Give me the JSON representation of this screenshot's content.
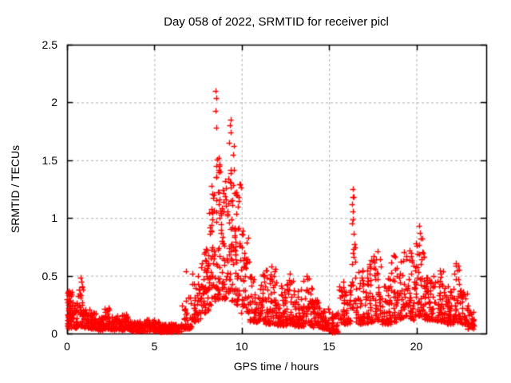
{
  "title": "Day 058 of 2022, SRMTID for receiver picl",
  "x_axis": {
    "label": "GPS time / hours",
    "tick_labels": [
      "0",
      "5",
      "10",
      "15",
      "20"
    ]
  },
  "y_axis": {
    "label": "SRMTID / TECUs",
    "tick_labels": [
      "0",
      "0.5",
      "1",
      "1.5",
      "2",
      "2.5"
    ]
  },
  "colors": {
    "marker": "#ff0000",
    "grid": "#b0b0b0",
    "axis": "#000000",
    "background": "#ffffff",
    "text": "#000000"
  },
  "chart_data": {
    "type": "scatter",
    "title": "Day 058 of 2022, SRMTID for receiver picl",
    "xlabel": "GPS time / hours",
    "ylabel": "SRMTID / TECUs",
    "xlim": [
      0,
      24
    ],
    "ylim": [
      0,
      2.5
    ],
    "x_ticks": [
      0,
      5,
      10,
      15,
      20
    ],
    "y_ticks": [
      0,
      0.5,
      1,
      1.5,
      2,
      2.5
    ],
    "grid": true,
    "legend": "none",
    "marker": {
      "shape": "plus",
      "color": "#ff0000",
      "size": 7
    },
    "seed": 58,
    "peak_points": [
      [
        8.52,
        2.1
      ],
      [
        8.54,
        2.04
      ],
      [
        8.49,
        1.93
      ],
      [
        8.56,
        1.78
      ],
      [
        9.35,
        1.85
      ],
      [
        9.32,
        1.8
      ],
      [
        9.38,
        1.74
      ],
      [
        9.3,
        1.65
      ],
      [
        9.55,
        1.62
      ],
      [
        9.52,
        1.55
      ],
      [
        8.7,
        1.52
      ],
      [
        8.74,
        1.45
      ],
      [
        9.05,
        1.32
      ],
      [
        9.1,
        1.26
      ],
      [
        8.28,
        1.28
      ],
      [
        8.31,
        1.21
      ],
      [
        16.35,
        1.25
      ],
      [
        16.36,
        1.18
      ],
      [
        16.33,
        1.12
      ],
      [
        16.38,
        1.06
      ],
      [
        16.34,
        0.95
      ],
      [
        16.4,
        0.86
      ],
      [
        20.18,
        0.93
      ],
      [
        20.22,
        0.87
      ],
      [
        20.25,
        0.82
      ],
      [
        6.82,
        0.54
      ],
      [
        0.79,
        0.48
      ],
      [
        0.82,
        0.45
      ],
      [
        15.18,
        0.01
      ],
      [
        15.24,
        0.015
      ],
      [
        15.3,
        0.01
      ],
      [
        15.35,
        0.02
      ],
      [
        19.6,
        0.72
      ],
      [
        17.8,
        0.71
      ],
      [
        18.7,
        0.68
      ],
      [
        22.25,
        0.61
      ],
      [
        11.7,
        0.58
      ],
      [
        12.75,
        0.52
      ],
      [
        13.7,
        0.5
      ]
    ],
    "noise_bands": [
      [
        0.0,
        0.3,
        0.05,
        0.38,
        55,
        1.5
      ],
      [
        0.3,
        0.6,
        0.05,
        0.28,
        30,
        1.7
      ],
      [
        0.6,
        0.95,
        0.06,
        0.48,
        32,
        1.8
      ],
      [
        0.95,
        1.3,
        0.05,
        0.22,
        30,
        1.7
      ],
      [
        1.3,
        1.75,
        0.04,
        0.18,
        40,
        1.7
      ],
      [
        1.75,
        2.1,
        0.03,
        0.14,
        35,
        1.6
      ],
      [
        2.1,
        2.45,
        0.04,
        0.22,
        35,
        1.8
      ],
      [
        2.45,
        3.1,
        0.03,
        0.15,
        55,
        1.7
      ],
      [
        3.1,
        3.6,
        0.03,
        0.17,
        45,
        1.8
      ],
      [
        3.6,
        4.3,
        0.02,
        0.11,
        60,
        1.6
      ],
      [
        4.3,
        5.3,
        0.02,
        0.12,
        80,
        1.7
      ],
      [
        5.3,
        6.6,
        0.015,
        0.08,
        100,
        1.5
      ],
      [
        6.6,
        7.15,
        0.04,
        0.32,
        35,
        1.6
      ],
      [
        7.15,
        7.65,
        0.1,
        0.52,
        40,
        1.6
      ],
      [
        7.65,
        8.1,
        0.18,
        0.78,
        45,
        1.6
      ],
      [
        8.1,
        8.45,
        0.25,
        1.3,
        42,
        1.7
      ],
      [
        8.45,
        8.8,
        0.3,
        1.6,
        40,
        1.8
      ],
      [
        8.8,
        9.25,
        0.3,
        1.35,
        48,
        1.8
      ],
      [
        9.25,
        9.6,
        0.28,
        1.5,
        40,
        1.8
      ],
      [
        9.6,
        9.95,
        0.25,
        1.3,
        42,
        1.8
      ],
      [
        9.95,
        10.45,
        0.18,
        0.9,
        40,
        1.8
      ],
      [
        10.45,
        11.05,
        0.1,
        0.5,
        48,
        1.8
      ],
      [
        11.05,
        11.55,
        0.08,
        0.55,
        45,
        1.9
      ],
      [
        11.55,
        12.0,
        0.08,
        0.6,
        42,
        1.9
      ],
      [
        12.0,
        12.55,
        0.07,
        0.42,
        48,
        1.9
      ],
      [
        12.55,
        13.0,
        0.08,
        0.5,
        40,
        1.9
      ],
      [
        13.0,
        13.55,
        0.06,
        0.38,
        48,
        1.9
      ],
      [
        13.55,
        14.05,
        0.07,
        0.48,
        42,
        1.9
      ],
      [
        14.05,
        14.6,
        0.05,
        0.3,
        45,
        1.8
      ],
      [
        14.6,
        15.05,
        0.04,
        0.25,
        38,
        1.8
      ],
      [
        15.05,
        15.55,
        0.01,
        0.18,
        35,
        1.6
      ],
      [
        15.55,
        16.25,
        0.08,
        0.45,
        55,
        1.8
      ],
      [
        16.25,
        16.5,
        0.18,
        1.22,
        18,
        1.5
      ],
      [
        16.5,
        17.25,
        0.08,
        0.55,
        60,
        1.8
      ],
      [
        17.25,
        18.0,
        0.1,
        0.68,
        60,
        1.9
      ],
      [
        18.0,
        18.55,
        0.08,
        0.5,
        45,
        1.8
      ],
      [
        18.55,
        19.15,
        0.1,
        0.68,
        48,
        1.9
      ],
      [
        19.15,
        19.95,
        0.12,
        0.72,
        65,
        1.9
      ],
      [
        19.95,
        20.45,
        0.15,
        0.88,
        45,
        1.8
      ],
      [
        20.45,
        21.1,
        0.12,
        0.5,
        55,
        1.8
      ],
      [
        21.1,
        21.65,
        0.1,
        0.55,
        45,
        1.9
      ],
      [
        21.65,
        22.1,
        0.08,
        0.42,
        40,
        1.8
      ],
      [
        22.1,
        22.5,
        0.1,
        0.6,
        35,
        1.8
      ],
      [
        22.5,
        22.95,
        0.08,
        0.38,
        38,
        1.7
      ],
      [
        22.95,
        23.3,
        0.04,
        0.2,
        28,
        1.5
      ]
    ]
  }
}
